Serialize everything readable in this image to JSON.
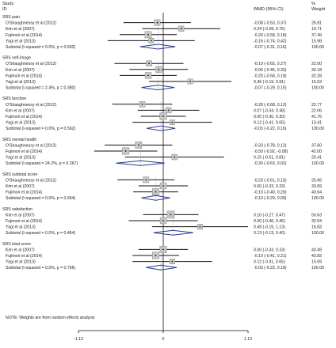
{
  "chart_data": {
    "type": "forest",
    "header": {
      "study_line1": "Study",
      "study_line2": "ID",
      "effect": "WMD (95% CI)",
      "weight_line1": "%",
      "weight_line2": "Weight"
    },
    "xlim": [
      -1.13,
      1.13
    ],
    "ticks": [
      {
        "value": -1.13,
        "label": "-1.13"
      },
      {
        "value": 0,
        "label": "0"
      },
      {
        "value": 1.13,
        "label": "1.13"
      }
    ],
    "note": "NOTE: Weights are from random effects analysis",
    "groups": [
      {
        "title": "SRS pain",
        "studies": [
          {
            "name": "O'Shaughnessy et al (2012)",
            "est": -0.08,
            "lo": -0.53,
            "hi": 0.37,
            "ci_text": "-0.08 (-0.53, 0.37)",
            "weight": "26.81"
          },
          {
            "name": "Kim et al (2007)",
            "est": 0.24,
            "lo": -0.28,
            "hi": 0.76,
            "ci_text": "0.24 (-0.28, 0.76)",
            "weight": "19.71"
          },
          {
            "name": "Fujimori et al (2014)",
            "est": -0.2,
            "lo": -0.58,
            "hi": 0.18,
            "ci_text": "-0.20 (-0.58, 0.18)",
            "weight": "37.49"
          },
          {
            "name": "Yagi et al (2013)",
            "est": -0.16,
            "lo": -0.74,
            "hi": 0.42,
            "ci_text": "-0.16 (-0.74, 0.42)",
            "weight": "15.98"
          }
        ],
        "subtotal": {
          "label": "Subtotal  (I-squared = 0.0%, p = 0.592)",
          "est": -0.07,
          "lo": -0.31,
          "hi": 0.16,
          "ci_text": "-0.07 (-0.31, 0.16)",
          "weight": "100.00"
        }
      },
      {
        "title": "SRS self-image",
        "studies": [
          {
            "name": "O'Shaughnessy et al (2012)",
            "est": -0.19,
            "lo": -0.65,
            "hi": 0.27,
            "ci_text": "-0.19 (-0.65, 0.27)",
            "weight": "22.00"
          },
          {
            "name": "Kim et al (2007)",
            "est": -0.06,
            "lo": -0.45,
            "hi": 0.33,
            "ci_text": "-0.06 (-0.45, 0.33)",
            "weight": "30.18"
          },
          {
            "name": "Fujimori et al (2014)",
            "est": -0.2,
            "lo": -0.58,
            "hi": 0.18,
            "ci_text": "-0.20 (-0.58, 0.18)",
            "weight": "32.28"
          },
          {
            "name": "Yagi et al (2013)",
            "est": 0.36,
            "lo": -0.19,
            "hi": 0.91,
            "ci_text": "0.36 (-0.19, 0.91)",
            "weight": "15.53"
          }
        ],
        "subtotal": {
          "label": "Subtotal  (I-squared = 2.4%, p = 0.380)",
          "est": -0.07,
          "lo": -0.29,
          "hi": 0.15,
          "ci_text": "-0.07 (-0.29, 0.15)",
          "weight": "100.00"
        }
      },
      {
        "title": "SRS function",
        "studies": [
          {
            "name": "O'Shaughnessy et al (2012)",
            "est": -0.28,
            "lo": -0.68,
            "hi": 0.12,
            "ci_text": "-0.28 (-0.68, 0.12)",
            "weight": "22.77"
          },
          {
            "name": "Kim et al (2007)",
            "est": 0.07,
            "lo": -0.34,
            "hi": 0.48,
            "ci_text": "0.07 (-0.34, 0.48)",
            "weight": "22.06"
          },
          {
            "name": "Fujimori et al (2014)",
            "est": 0.0,
            "lo": -0.3,
            "hi": 0.3,
            "ci_text": "0.00 (-0.30, 0.30)",
            "weight": "41.76"
          },
          {
            "name": "Yagi et al (2013)",
            "est": 0.12,
            "lo": -0.41,
            "hi": 0.65,
            "ci_text": "0.12 (-0.41, 0.65)",
            "weight": "13.41"
          }
        ],
        "subtotal": {
          "label": "Subtotal  (I-squared = 0.0%, p = 0.562)",
          "est": -0.03,
          "lo": -0.22,
          "hi": 0.16,
          "ci_text": "-0.03 (-0.22, 0.16)",
          "weight": "100.00"
        }
      },
      {
        "title": "SRS mental health",
        "studies": [
          {
            "name": "O'Shaughnessy et al (2012)",
            "est": -0.33,
            "lo": -0.78,
            "hi": 0.12,
            "ci_text": "-0.33 (-0.78, 0.12)",
            "weight": "37.60"
          },
          {
            "name": "Fujimori et al (2014)",
            "est": -0.5,
            "lo": -0.92,
            "hi": -0.08,
            "ci_text": "-0.50 (-0.92, -0.08)",
            "weight": "42.00"
          },
          {
            "name": "Yagi et al (2013)",
            "est": 0.15,
            "lo": -0.51,
            "hi": 0.81,
            "ci_text": "0.15 (-0.51, 0.81)",
            "weight": "20.41"
          }
        ],
        "subtotal": {
          "label": "Subtotal  (I-squared = 24.2%, p = 0.267)",
          "est": -0.3,
          "lo": -0.63,
          "hi": 0.02,
          "ci_text": "-0.30 (-0.63, 0.02)",
          "weight": "100.00"
        }
      },
      {
        "title": "SRS subtotal score",
        "studies": [
          {
            "name": "O'Shaughnessy et al (2012)",
            "est": -0.23,
            "lo": -0.61,
            "hi": 0.15,
            "ci_text": "-0.23 (-0.61, 0.15)",
            "weight": "25.66"
          },
          {
            "name": "Kim et al (2007)",
            "est": 0.0,
            "lo": -0.33,
            "hi": 0.33,
            "ci_text": "0.00 (-0.33, 0.33)",
            "weight": "33.69"
          },
          {
            "name": "Fujimori et al (2014)",
            "est": -0.1,
            "lo": -0.4,
            "hi": 0.2,
            "ci_text": "-0.10 (-0.40, 0.20)",
            "weight": "40.64"
          }
        ],
        "subtotal": {
          "label": "Subtotal  (I-squared = 0.0%, p = 0.664)",
          "est": -0.1,
          "lo": -0.29,
          "hi": 0.09,
          "ci_text": "-0.10 (-0.29, 0.09)",
          "weight": "100.00"
        }
      },
      {
        "title": "SRS satisfaction",
        "studies": [
          {
            "name": "Kim et al (2007)",
            "est": 0.1,
            "lo": -0.27,
            "hi": 0.47,
            "ci_text": "0.10 (-0.27, 0.47)",
            "weight": "50.63"
          },
          {
            "name": "Fujimori et al (2014)",
            "est": 0.0,
            "lo": -0.46,
            "hi": 0.46,
            "ci_text": "0.00 (-0.46, 0.46)",
            "weight": "32.54"
          },
          {
            "name": "Yagi et al (2013)",
            "est": 0.49,
            "lo": -0.15,
            "hi": 1.13,
            "ci_text": "0.49 (-0.15, 1.13)",
            "weight": "16.83"
          }
        ],
        "subtotal": {
          "label": "Subtotal  (I-squared = 0.0%, p = 0.464)",
          "est": 0.13,
          "lo": -0.13,
          "hi": 0.4,
          "ci_text": "0.13 (-0.13, 0.40)",
          "weight": "100.00"
        }
      },
      {
        "title": "SRS total score",
        "studies": [
          {
            "name": "Kim et al (2007)",
            "est": 0.0,
            "lo": -0.33,
            "hi": 0.33,
            "ci_text": "0.00 (-0.33, 0.33)",
            "weight": "40.49"
          },
          {
            "name": "Fujimori et al (2014)",
            "est": -0.1,
            "lo": -0.41,
            "hi": 0.21,
            "ci_text": "-0.10 (-0.41, 0.21)",
            "weight": "43.82"
          },
          {
            "name": "Yagi et al (2013)",
            "est": 0.12,
            "lo": -0.41,
            "hi": 0.65,
            "ci_text": "0.12 (-0.41, 0.65)",
            "weight": "15.69"
          }
        ],
        "subtotal": {
          "label": "Subtotal  (I-squared = 0.0%, p = 0.766)",
          "est": -0.03,
          "lo": -0.23,
          "hi": 0.18,
          "ci_text": "-0.03 (-0.23, 0.18)",
          "weight": "100.00"
        }
      }
    ]
  },
  "colors": {
    "text": "#222222",
    "line": "#111111",
    "box_fill": "#c8c8c8",
    "box_stroke": "#888888",
    "diamond": "#2b3a8c",
    "dashed": "#7a8ac8"
  }
}
